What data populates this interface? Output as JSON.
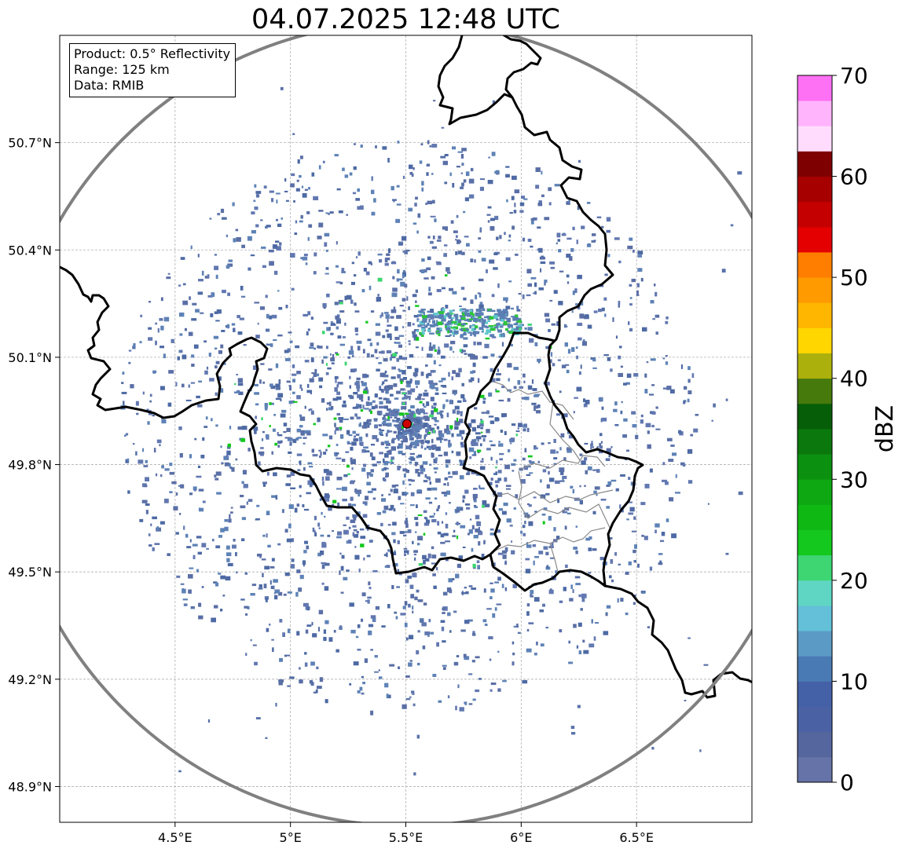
{
  "title": "04.07.2025 12:48 UTC",
  "info": {
    "product": "Product: 0.5° Reflectivity",
    "range": "Range: 125 km",
    "data": "Data: RMIB"
  },
  "map": {
    "lon_range": [
      4.0,
      7.0
    ],
    "lat_range": [
      48.8,
      51.0
    ],
    "lon_ticks": [
      {
        "value": 4.5,
        "label": "4.5°E"
      },
      {
        "value": 5.0,
        "label": "5°E"
      },
      {
        "value": 5.5,
        "label": "5.5°E"
      },
      {
        "value": 6.0,
        "label": "6°E"
      },
      {
        "value": 6.5,
        "label": "6.5°E"
      }
    ],
    "lat_ticks": [
      {
        "value": 48.9,
        "label": "48.9°N"
      },
      {
        "value": 49.2,
        "label": "49.2°N"
      },
      {
        "value": 49.5,
        "label": "49.5°N"
      },
      {
        "value": 49.8,
        "label": "49.8°N"
      },
      {
        "value": 50.1,
        "label": "50.1°N"
      },
      {
        "value": 50.4,
        "label": "50.4°N"
      },
      {
        "value": 50.7,
        "label": "50.7°N"
      }
    ],
    "radar_site": {
      "lon": 5.505,
      "lat": 49.914
    },
    "range_km": 125,
    "colors": {
      "border": "#000000",
      "admin": "#888888",
      "range_ring": "#808080",
      "grid": "#b0b0b0",
      "site_marker": "#d00000"
    }
  },
  "colorbar": {
    "label": "dBZ",
    "ticks": [
      {
        "value": 0,
        "label": "0"
      },
      {
        "value": 10,
        "label": "10"
      },
      {
        "value": 20,
        "label": "20"
      },
      {
        "value": 30,
        "label": "30"
      },
      {
        "value": 40,
        "label": "40"
      },
      {
        "value": 50,
        "label": "50"
      },
      {
        "value": 60,
        "label": "60"
      },
      {
        "value": 70,
        "label": "70"
      }
    ],
    "colors": [
      "#6673a8",
      "#55669e",
      "#4a62a4",
      "#4460a6",
      "#4a7ab4",
      "#5b9ac4",
      "#63c0d8",
      "#5fd6c4",
      "#3dd672",
      "#14c81e",
      "#10b814",
      "#0ea812",
      "#0c9010",
      "#0a780c",
      "#065e08",
      "#467a0c",
      "#acb00c",
      "#ffd600",
      "#ffb600",
      "#ff9a00",
      "#ff7e00",
      "#e40000",
      "#c40000",
      "#a60000",
      "#7e0000",
      "#ffdcfe",
      "#ffb4fc",
      "#fe70f4",
      "#ea34ea"
    ]
  }
}
